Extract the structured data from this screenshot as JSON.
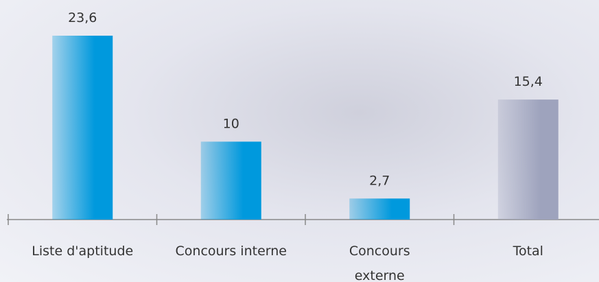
{
  "chart_data": {
    "type": "bar",
    "categories": [
      "Liste d'aptitude",
      "Concours interne",
      "Concours externe",
      "Total"
    ],
    "values": [
      23.6,
      10,
      2.7,
      15.4
    ],
    "value_labels": [
      "23,6",
      "10",
      "2,7",
      "15,4"
    ],
    "colors": [
      "#0099dd",
      "#0099dd",
      "#0099dd",
      "#9ea3bd"
    ]
  }
}
